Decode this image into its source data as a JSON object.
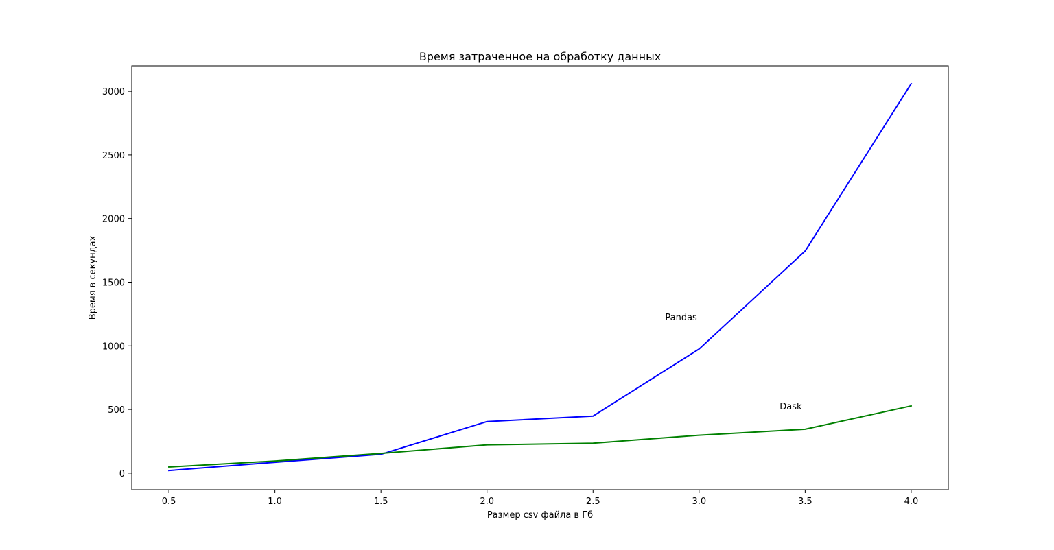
{
  "chart_data": {
    "type": "line",
    "title": "Время затраченное на обработку данных",
    "xlabel": "Размер csv файла в Гб",
    "ylabel": "Время в секундах",
    "x": [
      0.5,
      1.0,
      1.5,
      2.0,
      2.5,
      3.0,
      3.5,
      4.0
    ],
    "x_ticks": [
      "0.5",
      "1.0",
      "1.5",
      "2.0",
      "2.5",
      "3.0",
      "3.5",
      "4.0"
    ],
    "y_ticks": [
      "0",
      "500",
      "1000",
      "1500",
      "2000",
      "2500",
      "3000"
    ],
    "xlim": [
      0.325,
      4.175
    ],
    "ylim": [
      -130,
      3200
    ],
    "grid": false,
    "series": [
      {
        "label_ref": "Pandas",
        "color": "#0000ff",
        "values": [
          20,
          85,
          148,
          405,
          448,
          975,
          1745,
          3060
        ]
      },
      {
        "label_ref": "Dask",
        "color": "#008000",
        "values": [
          48,
          95,
          155,
          222,
          235,
          298,
          345,
          528
        ]
      }
    ],
    "annotations": [
      {
        "text": "Pandas",
        "x": 2.84,
        "y": 1200
      },
      {
        "text": "Dask",
        "x": 3.38,
        "y": 500
      }
    ]
  }
}
